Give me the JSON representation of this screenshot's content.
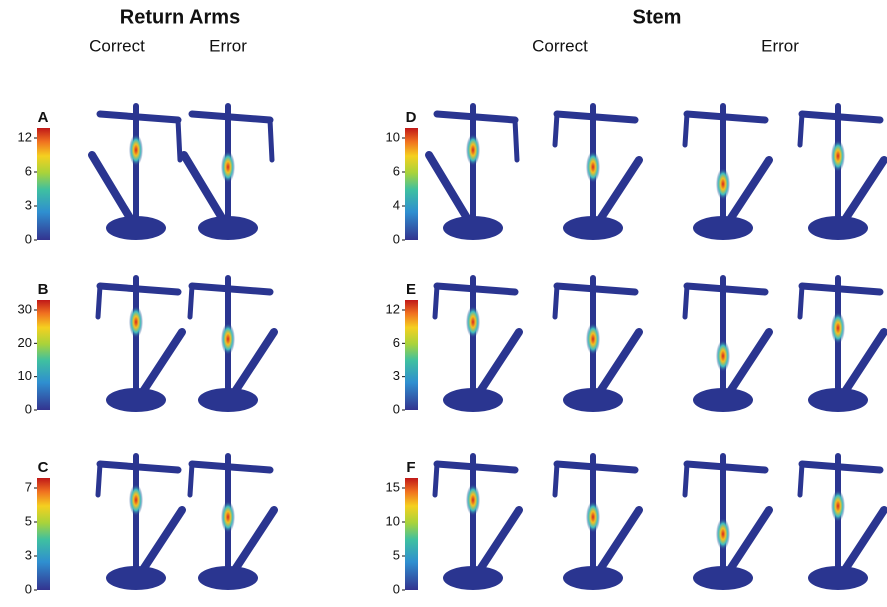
{
  "groups": [
    {
      "title": "Return Arms",
      "columns": [
        "Correct",
        "Error"
      ]
    },
    {
      "title": "Stem",
      "columns": [
        "Correct",
        "Error"
      ]
    }
  ],
  "panels": [
    {
      "label": "A",
      "ticks": [
        0,
        3,
        6,
        12
      ]
    },
    {
      "label": "B",
      "ticks": [
        0,
        10,
        20,
        30
      ]
    },
    {
      "label": "C",
      "ticks": [
        0,
        3,
        5,
        7
      ]
    },
    {
      "label": "D",
      "ticks": [
        0,
        4,
        6,
        10
      ]
    },
    {
      "label": "E",
      "ticks": [
        0,
        3,
        6,
        12
      ]
    },
    {
      "label": "F",
      "ticks": [
        0,
        5,
        10,
        15
      ]
    }
  ]
}
